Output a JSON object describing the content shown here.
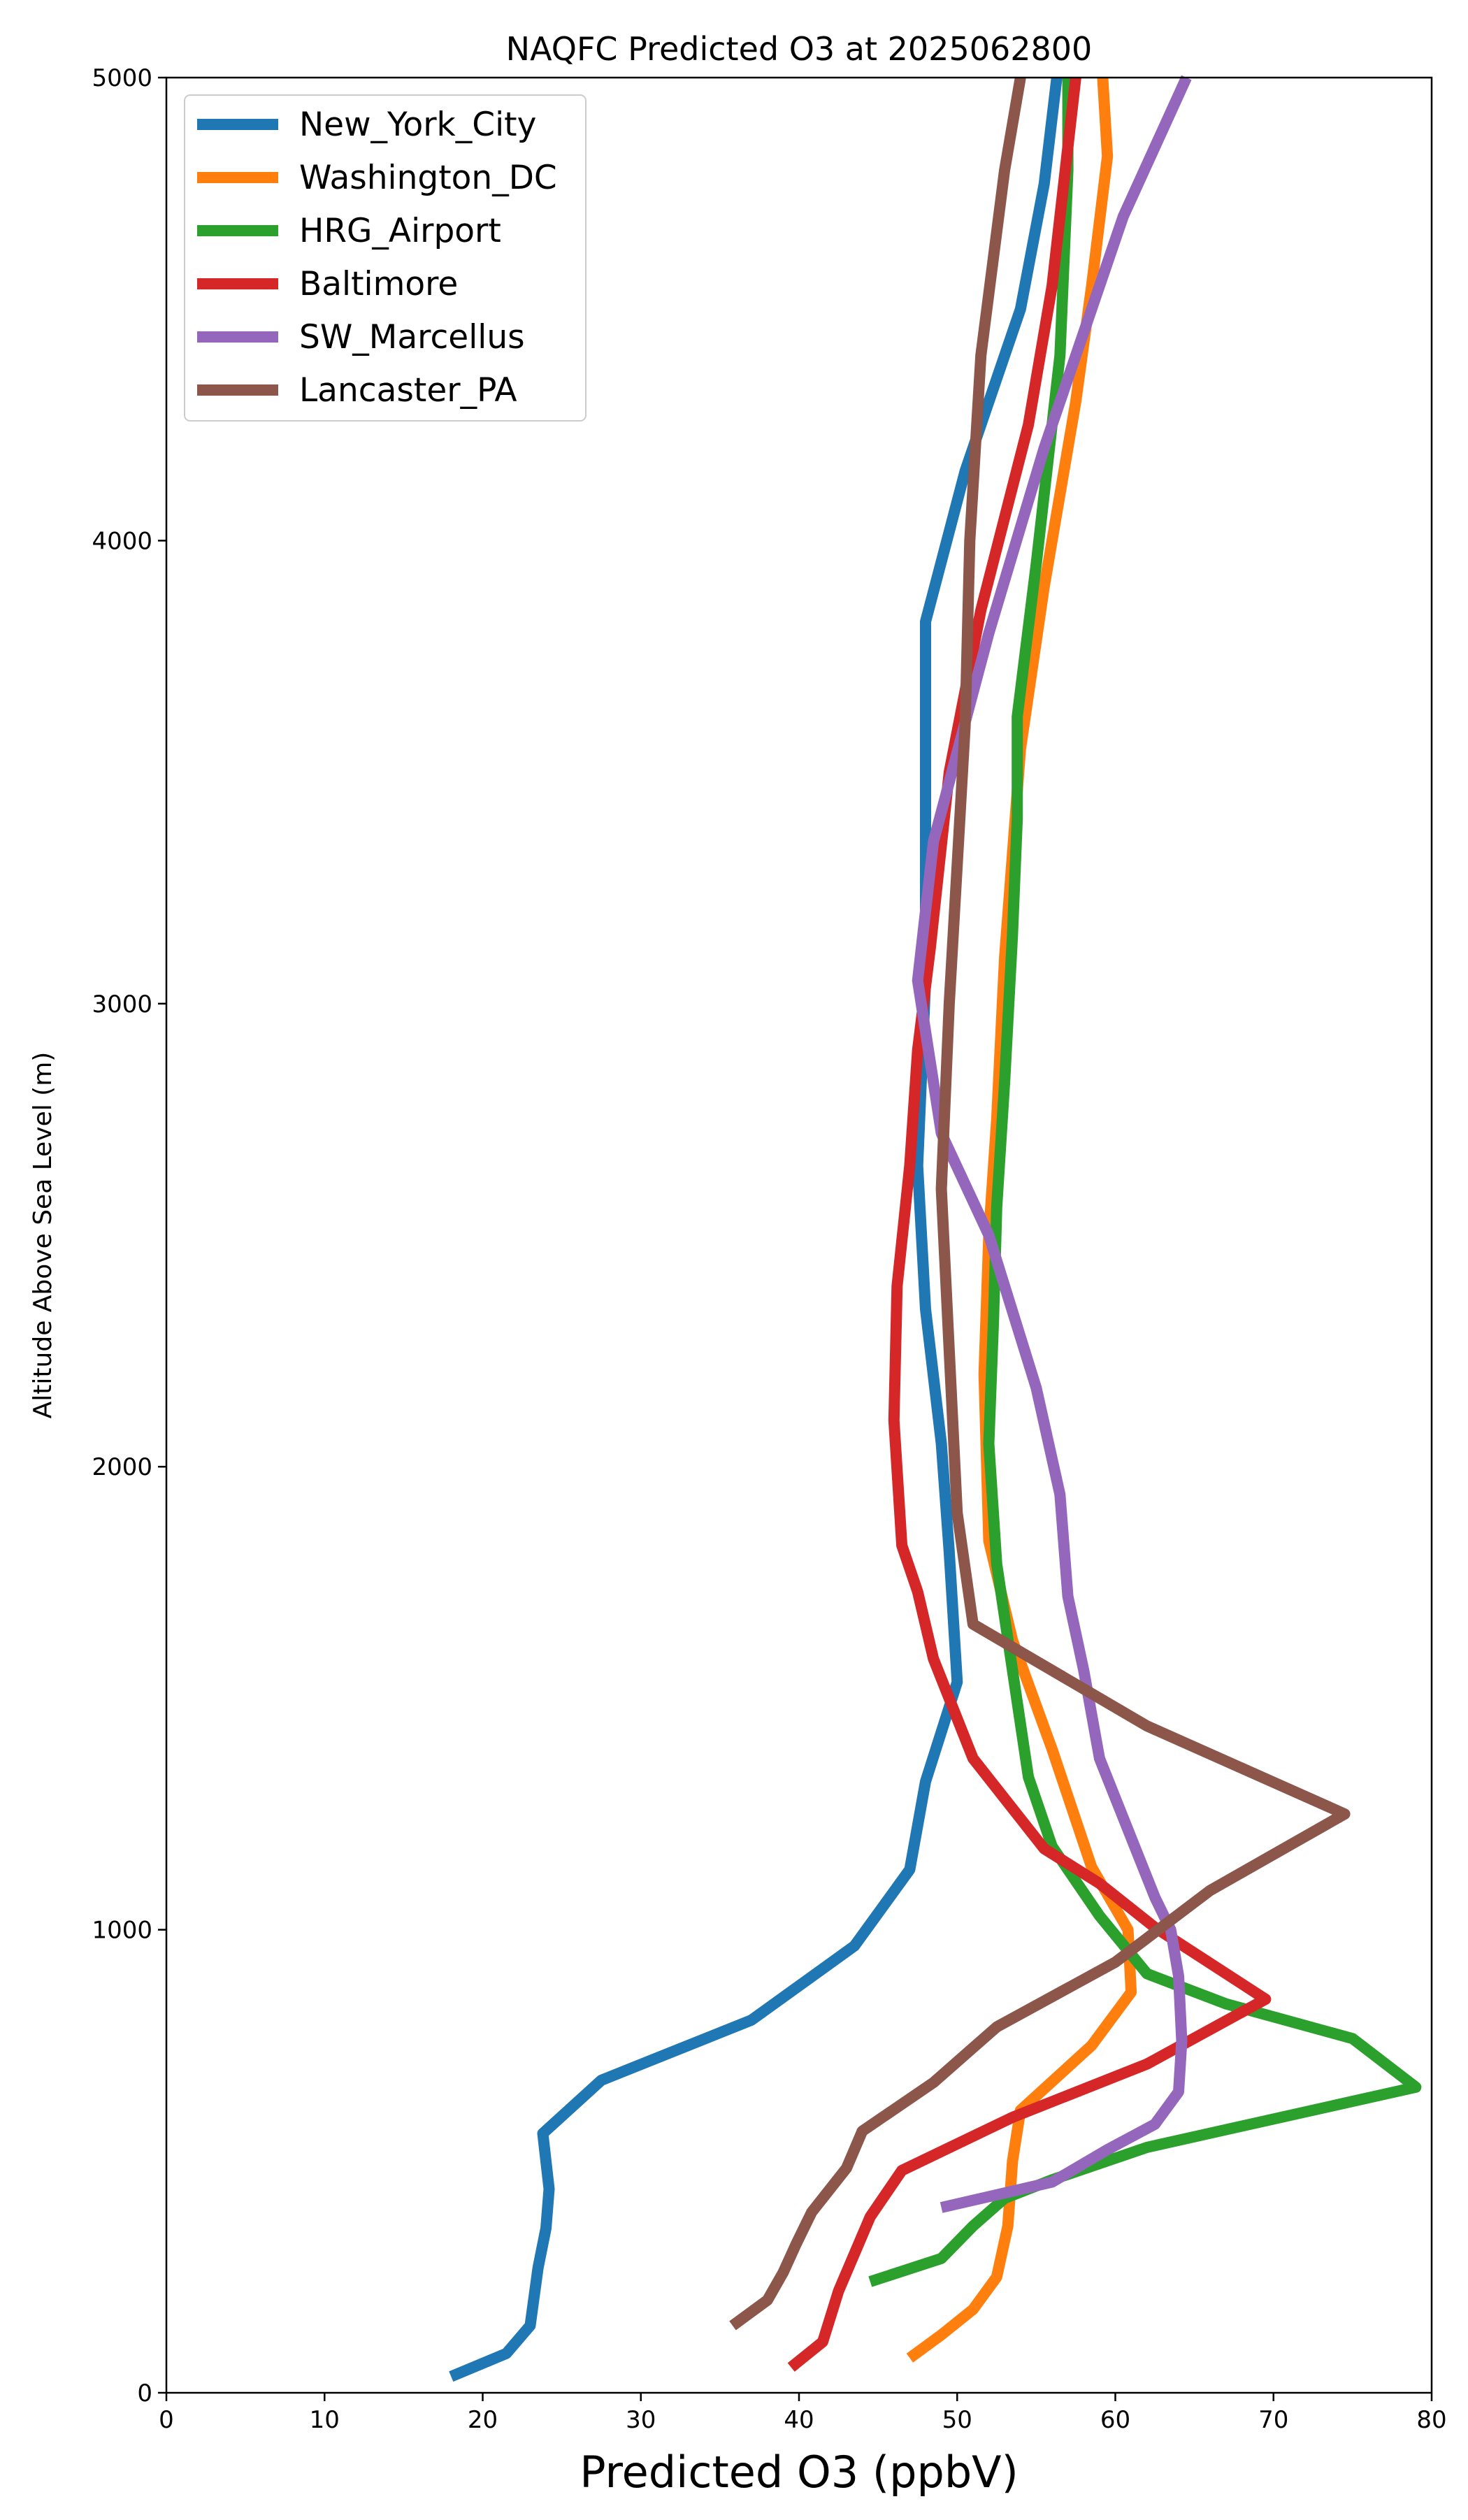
{
  "chart_data": {
    "type": "line",
    "title": "NAQFC Predicted O3 at 2025062800",
    "xlabel": "Predicted O3 (ppbV)",
    "ylabel": "Altitude Above Sea Level (m)",
    "xlim": [
      0,
      80
    ],
    "ylim": [
      0,
      5000
    ],
    "xticks": [
      "0",
      "10",
      "20",
      "30",
      "40",
      "50",
      "60",
      "70",
      "80"
    ],
    "yticks": [
      "0",
      "1000",
      "2000",
      "3000",
      "4000",
      "5000"
    ],
    "grid": false,
    "legend_position": "upper left",
    "series": [
      {
        "name": "New_York_City",
        "color": "#1f77b4",
        "points": [
          [
            18.0,
            35
          ],
          [
            21.5,
            85
          ],
          [
            23.0,
            145
          ],
          [
            23.5,
            270
          ],
          [
            24.0,
            355
          ],
          [
            24.2,
            440
          ],
          [
            23.8,
            560
          ],
          [
            27.5,
            675
          ],
          [
            37.0,
            805
          ],
          [
            43.5,
            965
          ],
          [
            47.0,
            1130
          ],
          [
            48.0,
            1320
          ],
          [
            50.0,
            1535
          ],
          [
            49.5,
            1815
          ],
          [
            49.0,
            2050
          ],
          [
            48.0,
            2340
          ],
          [
            47.5,
            2650
          ],
          [
            48.0,
            3050
          ],
          [
            48.0,
            3825
          ],
          [
            50.5,
            4150
          ],
          [
            54.0,
            4500
          ],
          [
            55.5,
            4770
          ],
          [
            56.3,
            5000
          ]
        ]
      },
      {
        "name": "Washington_DC",
        "color": "#ff7f0e",
        "points": [
          [
            47.0,
            75
          ],
          [
            49.0,
            125
          ],
          [
            51.0,
            180
          ],
          [
            52.5,
            250
          ],
          [
            53.2,
            360
          ],
          [
            53.5,
            500
          ],
          [
            54.0,
            610
          ],
          [
            58.5,
            750
          ],
          [
            61.0,
            865
          ],
          [
            60.8,
            1000
          ],
          [
            58.5,
            1135
          ],
          [
            56.0,
            1390
          ],
          [
            53.5,
            1625
          ],
          [
            52.0,
            1840
          ],
          [
            51.7,
            2200
          ],
          [
            52.0,
            2500
          ],
          [
            52.5,
            2750
          ],
          [
            53.0,
            3100
          ],
          [
            54.0,
            3550
          ],
          [
            55.5,
            3900
          ],
          [
            57.5,
            4300
          ],
          [
            58.5,
            4550
          ],
          [
            59.5,
            4830
          ],
          [
            59.2,
            5000
          ]
        ]
      },
      {
        "name": "HRG_Airport",
        "color": "#2ca02c",
        "points": [
          [
            44.5,
            240
          ],
          [
            49.0,
            290
          ],
          [
            51.0,
            360
          ],
          [
            53.0,
            420
          ],
          [
            56.0,
            460
          ],
          [
            62.0,
            530
          ],
          [
            79.0,
            660
          ],
          [
            75.0,
            765
          ],
          [
            67.0,
            840
          ],
          [
            62.0,
            905
          ],
          [
            59.0,
            1030
          ],
          [
            56.0,
            1180
          ],
          [
            54.5,
            1330
          ],
          [
            53.5,
            1560
          ],
          [
            52.5,
            1790
          ],
          [
            52.0,
            2050
          ],
          [
            52.3,
            2320
          ],
          [
            52.5,
            2560
          ],
          [
            53.0,
            2830
          ],
          [
            53.5,
            3150
          ],
          [
            53.8,
            3400
          ],
          [
            53.8,
            3620
          ],
          [
            55.0,
            3950
          ],
          [
            56.5,
            4400
          ],
          [
            57.0,
            4800
          ],
          [
            57.0,
            5000
          ]
        ]
      },
      {
        "name": "Baltimore",
        "color": "#d62728",
        "points": [
          [
            39.5,
            55
          ],
          [
            41.5,
            110
          ],
          [
            42.5,
            220
          ],
          [
            43.5,
            300
          ],
          [
            44.5,
            380
          ],
          [
            46.5,
            480
          ],
          [
            53.5,
            595
          ],
          [
            62.0,
            710
          ],
          [
            69.5,
            850
          ],
          [
            62.5,
            1005
          ],
          [
            59.0,
            1100
          ],
          [
            55.5,
            1175
          ],
          [
            51.0,
            1370
          ],
          [
            48.5,
            1585
          ],
          [
            47.5,
            1730
          ],
          [
            46.5,
            1830
          ],
          [
            46.0,
            2100
          ],
          [
            46.2,
            2390
          ],
          [
            47.0,
            2650
          ],
          [
            47.5,
            2900
          ],
          [
            48.3,
            3120
          ],
          [
            49.5,
            3500
          ],
          [
            51.5,
            3850
          ],
          [
            54.5,
            4250
          ],
          [
            56.0,
            4550
          ],
          [
            57.0,
            4850
          ],
          [
            57.5,
            5000
          ]
        ]
      },
      {
        "name": "SW_Marcellus",
        "color": "#9467bd",
        "points": [
          [
            49.0,
            400
          ],
          [
            56.0,
            455
          ],
          [
            59.5,
            525
          ],
          [
            62.5,
            580
          ],
          [
            64.0,
            650
          ],
          [
            64.2,
            760
          ],
          [
            64.0,
            900
          ],
          [
            63.5,
            1000
          ],
          [
            62.5,
            1070
          ],
          [
            59.0,
            1370
          ],
          [
            58.0,
            1560
          ],
          [
            57.0,
            1720
          ],
          [
            56.5,
            1940
          ],
          [
            55.0,
            2170
          ],
          [
            52.0,
            2500
          ],
          [
            49.0,
            2720
          ],
          [
            47.5,
            3050
          ],
          [
            48.5,
            3350
          ],
          [
            52.0,
            3800
          ],
          [
            55.5,
            4200
          ],
          [
            58.5,
            4500
          ],
          [
            60.5,
            4700
          ],
          [
            64.5,
            5000
          ]
        ]
      },
      {
        "name": "Lancaster_PA",
        "color": "#8c564b",
        "points": [
          [
            35.8,
            145
          ],
          [
            38.0,
            200
          ],
          [
            39.0,
            260
          ],
          [
            39.8,
            320
          ],
          [
            40.8,
            390
          ],
          [
            43.0,
            485
          ],
          [
            44.0,
            565
          ],
          [
            48.5,
            670
          ],
          [
            52.5,
            790
          ],
          [
            60.0,
            930
          ],
          [
            66.0,
            1085
          ],
          [
            74.5,
            1250
          ],
          [
            62.0,
            1440
          ],
          [
            51.0,
            1660
          ],
          [
            50.0,
            1900
          ],
          [
            49.5,
            2250
          ],
          [
            49.0,
            2600
          ],
          [
            49.5,
            3000
          ],
          [
            50.0,
            3300
          ],
          [
            50.5,
            3600
          ],
          [
            50.8,
            4000
          ],
          [
            51.5,
            4400
          ],
          [
            53.0,
            4800
          ],
          [
            54.0,
            5000
          ]
        ]
      }
    ]
  }
}
